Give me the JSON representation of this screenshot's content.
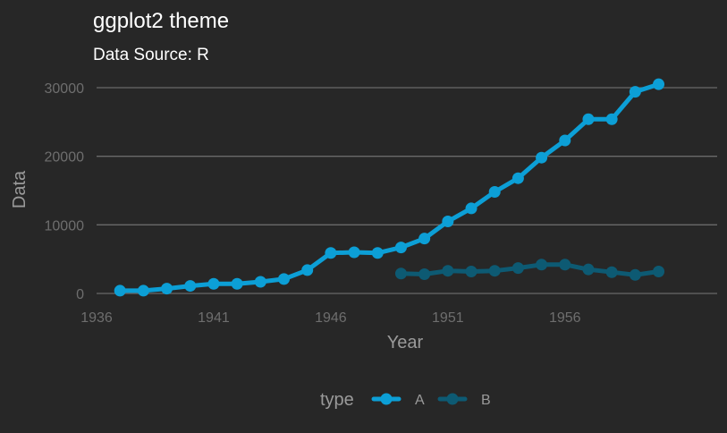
{
  "chart_data": {
    "type": "line",
    "title": "ggplot2 theme",
    "subtitle": "Data Source: R",
    "xlabel": "Year",
    "ylabel": "Data",
    "xlim": [
      1936,
      1962.5
    ],
    "ylim": [
      0,
      31500
    ],
    "x_ticks": [
      1936,
      1941,
      1946,
      1951,
      1956
    ],
    "x_tick_labels": [
      "1936",
      "1941",
      "1946",
      "1951",
      "1956"
    ],
    "y_ticks": [
      0,
      10000,
      20000,
      30000
    ],
    "y_tick_labels": [
      "0",
      "10000",
      "20000",
      "30000"
    ],
    "grid": true,
    "legend": {
      "title": "type",
      "position": "bottom"
    },
    "series": [
      {
        "name": "A",
        "color": "#0c9fd6",
        "x": [
          1937,
          1938,
          1939,
          1940,
          1941,
          1942,
          1943,
          1944,
          1945,
          1946,
          1947,
          1948,
          1949,
          1950,
          1951,
          1952,
          1953,
          1954,
          1955,
          1956,
          1957,
          1958,
          1959,
          1960
        ],
        "values": [
          400,
          400,
          700,
          1100,
          1400,
          1400,
          1700,
          2100,
          3400,
          5900,
          6000,
          5900,
          6700,
          8000,
          10500,
          12400,
          14800,
          16800,
          19800,
          22300,
          25400,
          25400,
          29400,
          30500
        ]
      },
      {
        "name": "B",
        "color": "#0d5a73",
        "x": [
          1949,
          1950,
          1951,
          1952,
          1953,
          1954,
          1955,
          1956,
          1957,
          1958,
          1959,
          1960
        ],
        "values": [
          2900,
          2800,
          3300,
          3200,
          3300,
          3700,
          4200,
          4200,
          3500,
          3100,
          2700,
          3200
        ]
      }
    ]
  }
}
